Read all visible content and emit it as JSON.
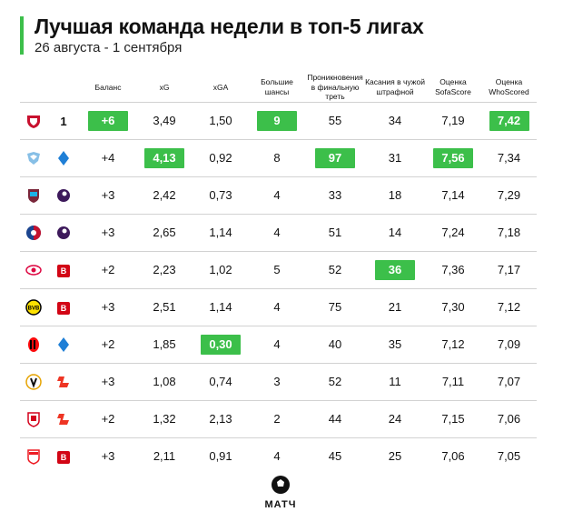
{
  "header": {
    "title": "Лучшая команда недели в топ-5 лигах",
    "subtitle": "26 августа - 1 сентября"
  },
  "colors": {
    "accent": "#3cbf4a"
  },
  "columns": {
    "balance": "Баланс",
    "xg": "xG",
    "xga": "xGA",
    "big_chances_1": "Большие",
    "big_chances_2": "шансы",
    "final_third_1": "Проникновения",
    "final_third_2": "в финальную треть",
    "touches_1": "Касания в чужой",
    "touches_2": "штрафной",
    "sofascore_1": "Оценка",
    "sofascore_2": "SofaScore",
    "whoscored_1": "Оценка",
    "whoscored_2": "WhoScored"
  },
  "rows": [
    {
      "club_icon": "lille-crest-icon",
      "league_icon": "ligue1-icon",
      "balance": "+6",
      "xg": "3,49",
      "xga": "1,50",
      "big_chances": "9",
      "final_third": "55",
      "touches": "34",
      "sofascore": "7,19",
      "whoscored": "7,42"
    },
    {
      "club_icon": "lazio-crest-icon",
      "league_icon": "serie-a-icon",
      "balance": "+4",
      "xg": "4,13",
      "xga": "0,92",
      "big_chances": "8",
      "final_third": "97",
      "touches": "31",
      "sofascore": "7,56",
      "whoscored": "7,34"
    },
    {
      "club_icon": "west-ham-crest-icon",
      "league_icon": "premier-league-icon",
      "balance": "+3",
      "xg": "2,42",
      "xga": "0,73",
      "big_chances": "4",
      "final_third": "33",
      "touches": "18",
      "sofascore": "7,14",
      "whoscored": "7,29"
    },
    {
      "club_icon": "crystal-palace-crest-icon",
      "league_icon": "premier-league-icon",
      "balance": "+3",
      "xg": "2,65",
      "xga": "1,14",
      "big_chances": "4",
      "final_third": "51",
      "touches": "14",
      "sofascore": "7,24",
      "whoscored": "7,18"
    },
    {
      "club_icon": "leipzig-crest-icon",
      "league_icon": "bundesliga-icon",
      "balance": "+2",
      "xg": "2,23",
      "xga": "1,02",
      "big_chances": "5",
      "final_third": "52",
      "touches": "36",
      "sofascore": "7,36",
      "whoscored": "7,17"
    },
    {
      "club_icon": "dortmund-crest-icon",
      "league_icon": "bundesliga-icon",
      "balance": "+3",
      "xg": "2,51",
      "xga": "1,14",
      "big_chances": "4",
      "final_third": "75",
      "touches": "21",
      "sofascore": "7,30",
      "whoscored": "7,12"
    },
    {
      "club_icon": "milan-crest-icon",
      "league_icon": "serie-a-icon",
      "balance": "+2",
      "xg": "1,85",
      "xga": "0,30",
      "big_chances": "4",
      "final_third": "40",
      "touches": "35",
      "sofascore": "7,12",
      "whoscored": "7,09"
    },
    {
      "club_icon": "valencia-crest-icon",
      "league_icon": "laliga-icon",
      "balance": "+3",
      "xg": "1,08",
      "xga": "0,74",
      "big_chances": "3",
      "final_third": "52",
      "touches": "11",
      "sofascore": "7,11",
      "whoscored": "7,07"
    },
    {
      "club_icon": "sevilla-crest-icon",
      "league_icon": "laliga-icon",
      "balance": "+2",
      "xg": "1,32",
      "xga": "2,13",
      "big_chances": "2",
      "final_third": "44",
      "touches": "24",
      "sofascore": "7,15",
      "whoscored": "7,06"
    },
    {
      "club_icon": "koln-crest-icon",
      "league_icon": "bundesliga-icon",
      "balance": "+3",
      "xg": "2,11",
      "xga": "0,91",
      "big_chances": "4",
      "final_third": "45",
      "touches": "25",
      "sofascore": "7,06",
      "whoscored": "7,05"
    }
  ],
  "highlights": [
    {
      "row": 0,
      "col": "balance"
    },
    {
      "row": 0,
      "col": "big_chances"
    },
    {
      "row": 0,
      "col": "whoscored"
    },
    {
      "row": 1,
      "col": "xg"
    },
    {
      "row": 1,
      "col": "final_third"
    },
    {
      "row": 1,
      "col": "sofascore"
    },
    {
      "row": 4,
      "col": "touches"
    },
    {
      "row": 6,
      "col": "xga"
    }
  ],
  "footer": {
    "brand": "МАТЧ",
    "brand_icon": "ball-icon"
  }
}
